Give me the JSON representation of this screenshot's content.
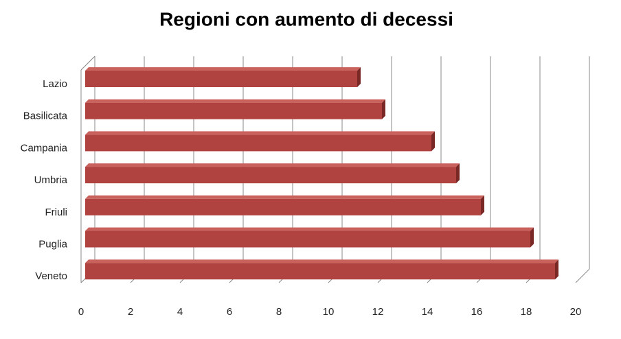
{
  "chart_data": {
    "type": "bar",
    "orientation": "horizontal",
    "title": "Regioni con aumento di decessi",
    "categories": [
      "Lazio",
      "Basilicata",
      "Campania",
      "Umbria",
      "Friuli",
      "Puglia",
      "Veneto"
    ],
    "values": [
      11,
      12,
      14,
      15,
      16,
      18,
      19
    ],
    "color": "#b0433f",
    "xlim": [
      0,
      20
    ],
    "xticks": [
      0,
      2,
      4,
      6,
      8,
      10,
      12,
      14,
      16,
      18,
      20
    ],
    "grid": true
  }
}
